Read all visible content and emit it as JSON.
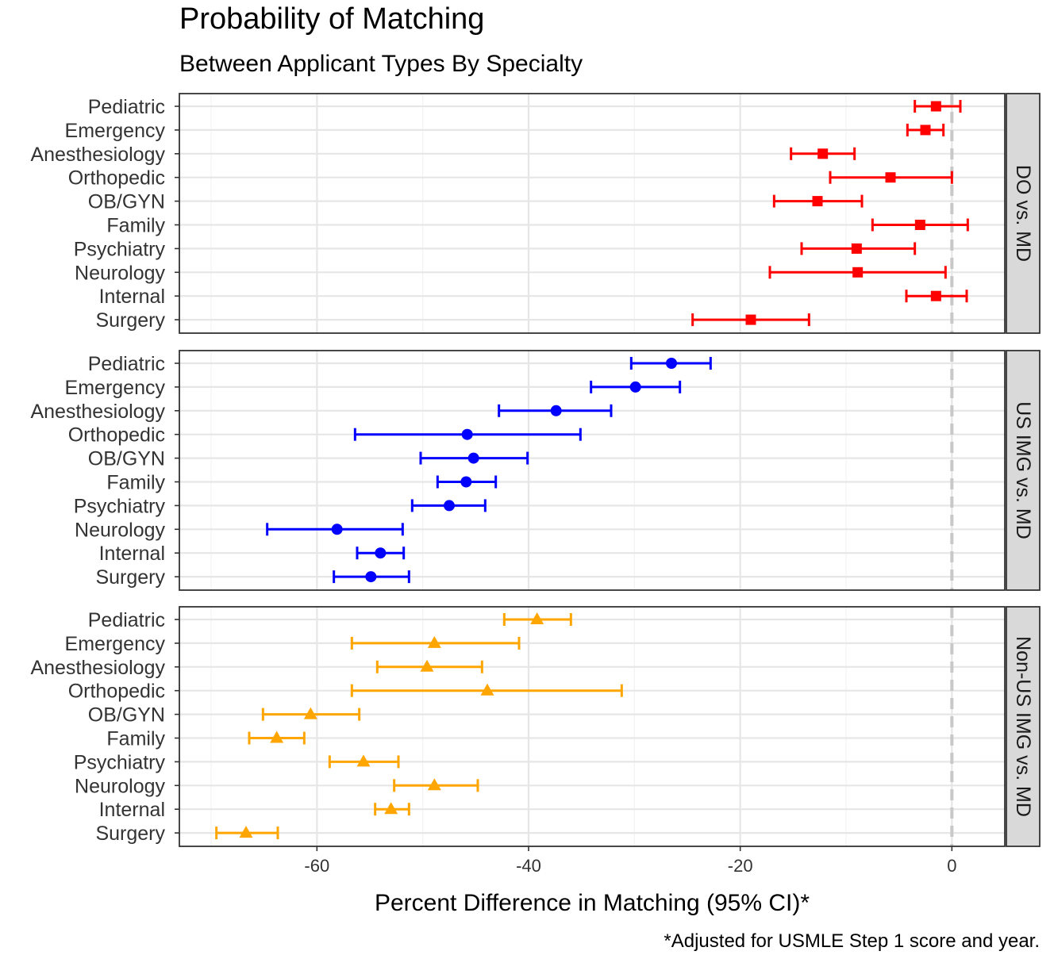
{
  "chart_data": {
    "type": "forest",
    "title": "Probability of Matching",
    "subtitle": "Between Applicant Types By Specialty",
    "xlabel": "Percent Difference in Matching (95% CI)*",
    "caption": "*Adjusted for USMLE Step 1 score and year.",
    "xlim": [
      -73,
      5
    ],
    "xticks": [
      -60,
      -40,
      -20,
      0
    ],
    "xtick_labels": [
      "-60",
      "-40",
      "-20",
      "0"
    ],
    "reference_line": 0,
    "categories": [
      "Pediatric",
      "Emergency",
      "Anesthesiology",
      "Orthopedic",
      "OB/GYN",
      "Family",
      "Psychiatry",
      "Neurology",
      "Internal",
      "Surgery"
    ],
    "panels": [
      {
        "label": "DO vs. MD",
        "color": "#ff0000",
        "marker": "square",
        "values": [
          {
            "est": -1.5,
            "lo": -3.5,
            "hi": 0.8
          },
          {
            "est": -2.5,
            "lo": -4.2,
            "hi": -0.8
          },
          {
            "est": -12.2,
            "lo": -15.2,
            "hi": -9.2
          },
          {
            "est": -5.8,
            "lo": -11.5,
            "hi": 0.0
          },
          {
            "est": -12.7,
            "lo": -16.8,
            "hi": -8.5
          },
          {
            "est": -3.0,
            "lo": -7.5,
            "hi": 1.5
          },
          {
            "est": -9.0,
            "lo": -14.2,
            "hi": -3.5
          },
          {
            "est": -8.9,
            "lo": -17.2,
            "hi": -0.6
          },
          {
            "est": -1.5,
            "lo": -4.3,
            "hi": 1.4
          },
          {
            "est": -19.0,
            "lo": -24.5,
            "hi": -13.5
          }
        ]
      },
      {
        "label": "US IMG vs. MD",
        "color": "#0000ff",
        "marker": "circle",
        "values": [
          {
            "est": -26.5,
            "lo": -30.3,
            "hi": -22.8
          },
          {
            "est": -29.9,
            "lo": -34.1,
            "hi": -25.7
          },
          {
            "est": -37.4,
            "lo": -42.8,
            "hi": -32.2
          },
          {
            "est": -45.8,
            "lo": -56.4,
            "hi": -35.1
          },
          {
            "est": -45.2,
            "lo": -50.2,
            "hi": -40.1
          },
          {
            "est": -45.9,
            "lo": -48.6,
            "hi": -43.1
          },
          {
            "est": -47.5,
            "lo": -51.0,
            "hi": -44.1
          },
          {
            "est": -58.1,
            "lo": -64.7,
            "hi": -51.9
          },
          {
            "est": -54.0,
            "lo": -56.2,
            "hi": -51.8
          },
          {
            "est": -54.9,
            "lo": -58.4,
            "hi": -51.3
          }
        ]
      },
      {
        "label": "Non-US IMG vs. MD",
        "color": "#ffa500",
        "marker": "triangle",
        "values": [
          {
            "est": -39.2,
            "lo": -42.3,
            "hi": -36.0
          },
          {
            "est": -48.9,
            "lo": -56.7,
            "hi": -40.9
          },
          {
            "est": -49.6,
            "lo": -54.3,
            "hi": -44.4
          },
          {
            "est": -43.9,
            "lo": -56.7,
            "hi": -31.2
          },
          {
            "est": -60.6,
            "lo": -65.1,
            "hi": -56.0
          },
          {
            "est": -63.8,
            "lo": -66.4,
            "hi": -61.2
          },
          {
            "est": -55.6,
            "lo": -58.8,
            "hi": -52.3
          },
          {
            "est": -48.9,
            "lo": -52.7,
            "hi": -44.8
          },
          {
            "est": -53.0,
            "lo": -54.5,
            "hi": -51.3
          },
          {
            "est": -66.7,
            "lo": -69.5,
            "hi": -63.7
          }
        ]
      }
    ]
  }
}
